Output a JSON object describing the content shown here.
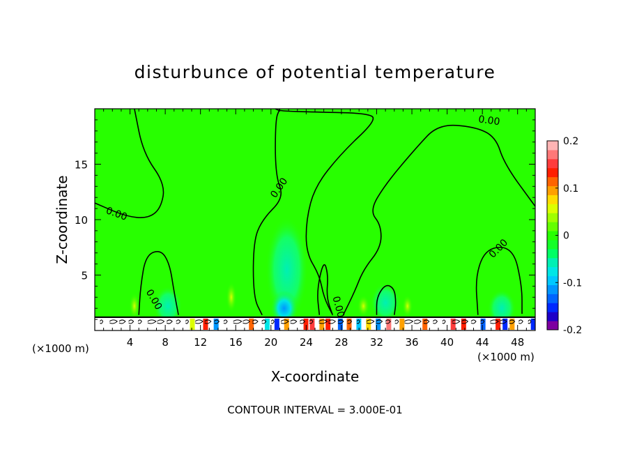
{
  "chart_data": {
    "type": "heatmap",
    "title": "disturbunce of potential temperature",
    "xlabel": "X-coordinate",
    "ylabel": "Z-coordinate",
    "x_unit": "(×1000 m)",
    "y_unit": "(×1000 m)",
    "xlim": [
      0,
      50
    ],
    "ylim": [
      0,
      20
    ],
    "x_ticks": [
      "4",
      "8",
      "12",
      "16",
      "20",
      "24",
      "28",
      "32",
      "36",
      "40",
      "44",
      "48"
    ],
    "y_ticks": [
      "5",
      "10",
      "15"
    ],
    "footer": "CONTOUR INTERVAL = 3.000E-01",
    "contour_label": "0.00",
    "colorbar": {
      "range": [
        -0.2,
        0.2
      ],
      "tick_labels": [
        "0.2",
        "0.1",
        "0",
        "-0.1",
        "-0.2"
      ],
      "tick_values": [
        0.2,
        0.1,
        0,
        -0.1,
        -0.2
      ],
      "colors": [
        "#7d00a0",
        "#1e00c8",
        "#0028ff",
        "#0064ff",
        "#0096ff",
        "#00c8ff",
        "#00e6e6",
        "#00f0b4",
        "#00ff64",
        "#14ff28",
        "#28ff00",
        "#64ff00",
        "#a0ff00",
        "#dcff00",
        "#ffdc00",
        "#ffa000",
        "#ff6400",
        "#ff1e00",
        "#ff3c3c",
        "#ff7878",
        "#ffb4b4"
      ]
    },
    "background_value": 0.0,
    "cool_anomalies": [
      {
        "x": 22,
        "z": 5.5,
        "value": -0.05
      },
      {
        "x": 21,
        "z": 1.5,
        "value": -0.12
      },
      {
        "x": 33,
        "z": 2.5,
        "value": -0.05
      },
      {
        "x": 8,
        "z": 2.2,
        "value": -0.05
      },
      {
        "x": 46,
        "z": 2.0,
        "value": -0.05
      }
    ],
    "surface_layer_depth": 1.2
  }
}
